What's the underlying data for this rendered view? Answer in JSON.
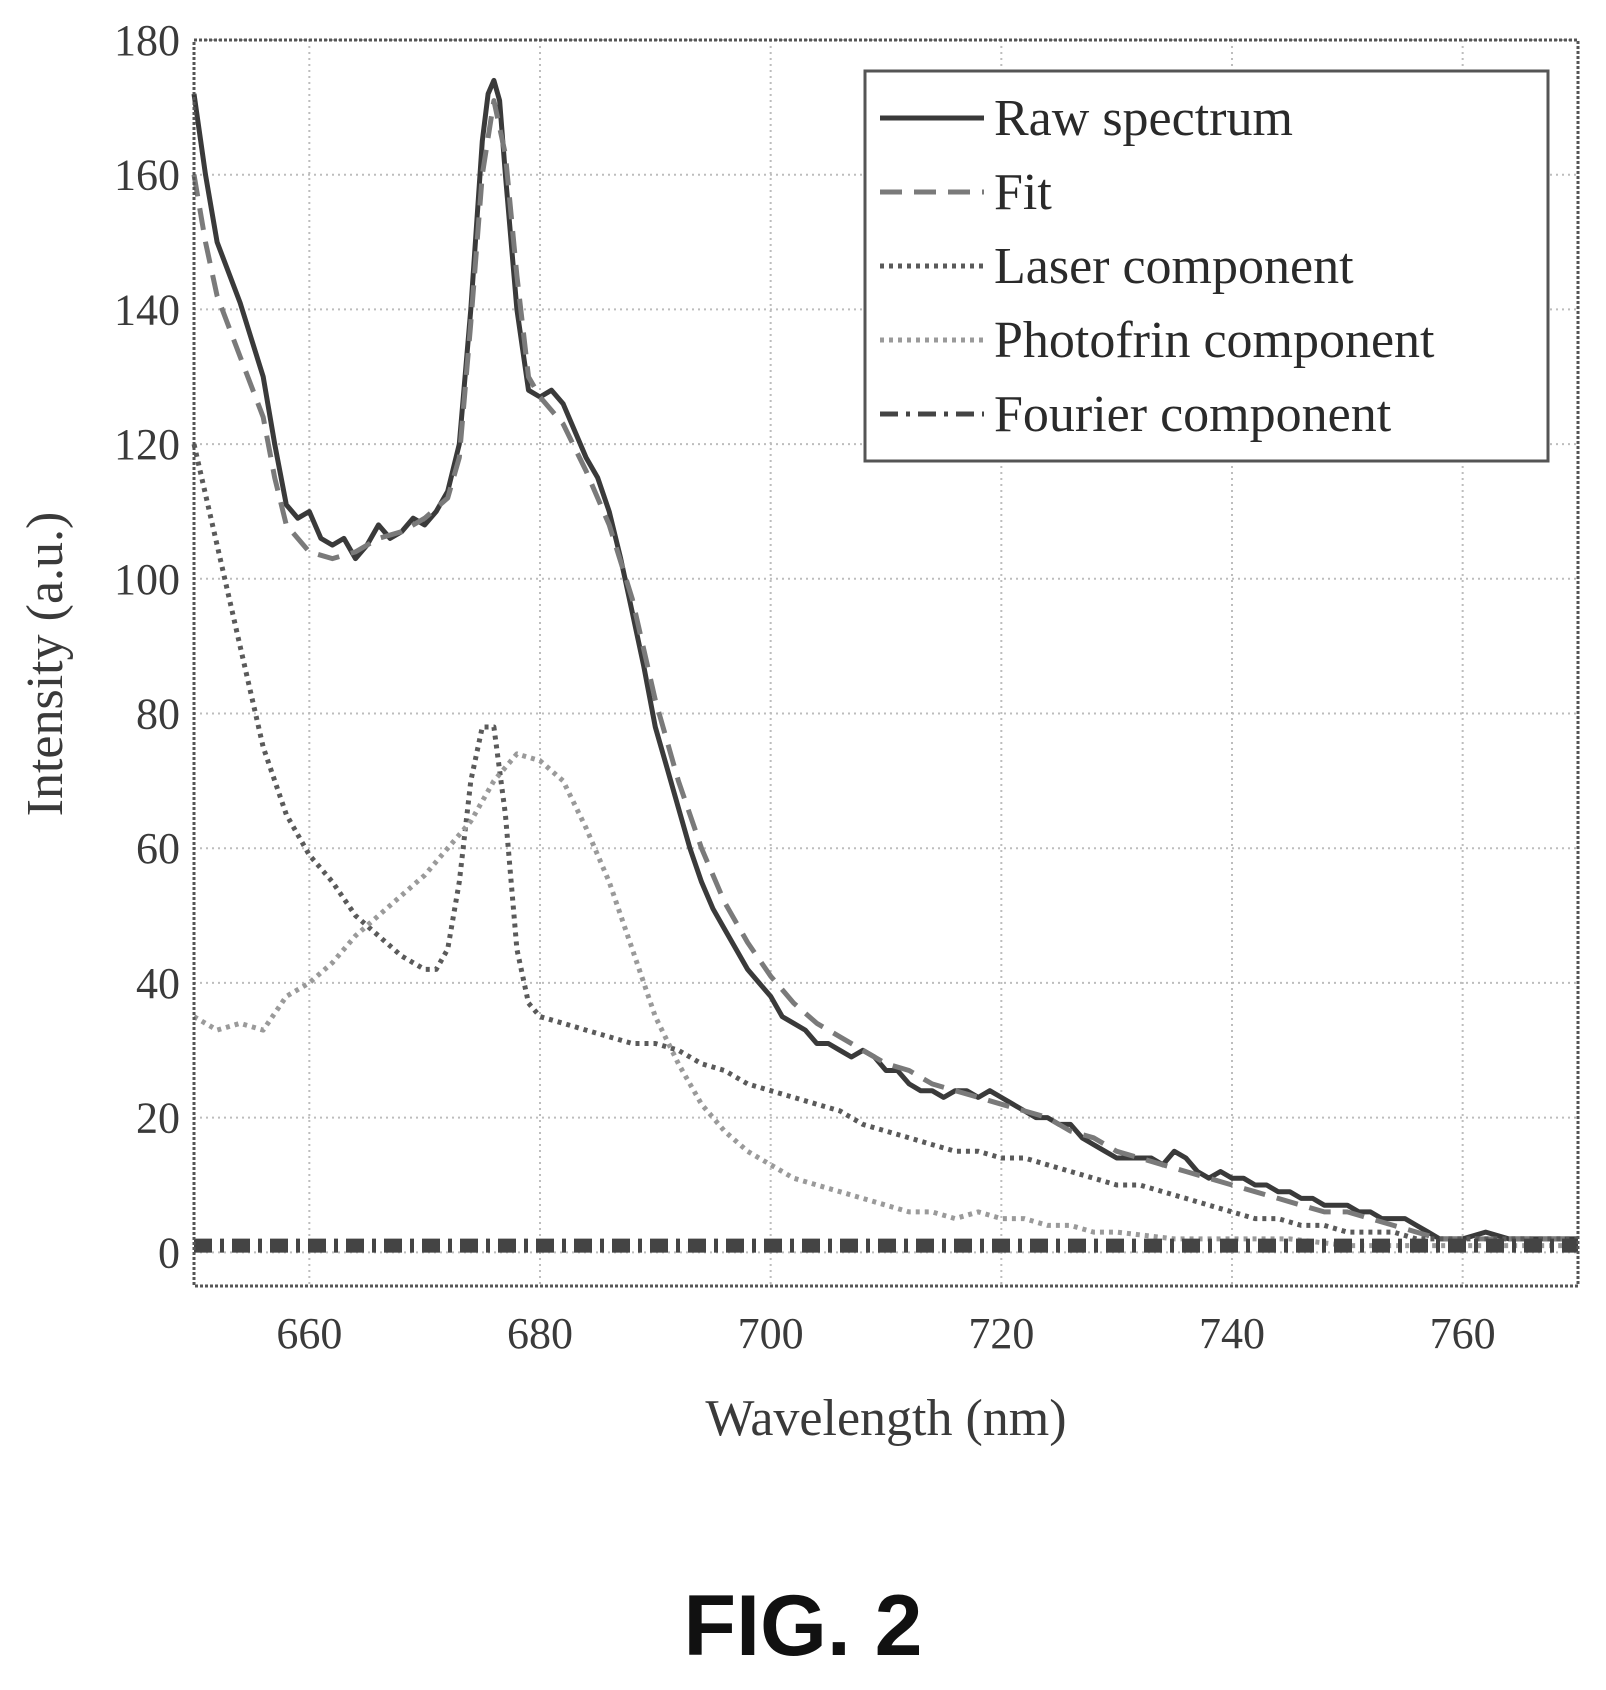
{
  "figure": {
    "caption": "FIG. 2"
  },
  "chart_data": {
    "type": "line",
    "xlabel": "Wavelength (nm)",
    "ylabel": "Intensity (a.u.)",
    "xlim": [
      650,
      770
    ],
    "ylim": [
      -5,
      180
    ],
    "xticks": [
      660,
      680,
      700,
      720,
      740,
      760
    ],
    "yticks": [
      0,
      20,
      40,
      60,
      80,
      100,
      120,
      140,
      160,
      180
    ],
    "grid": true,
    "legend_position": "top-right",
    "series": [
      {
        "name": "Raw spectrum",
        "color": "#3a3a3a",
        "dash": "solid",
        "x": [
          650,
          651,
          652,
          654,
          656,
          657,
          658,
          659,
          660,
          661,
          662,
          663,
          664,
          665,
          666,
          667,
          668,
          669,
          670,
          671,
          672,
          673,
          674,
          675,
          675.5,
          676,
          676.5,
          677,
          678,
          679,
          680,
          681,
          682,
          683,
          684,
          685,
          686,
          687,
          688,
          689,
          690,
          691,
          692,
          693,
          694,
          695,
          696,
          697,
          698,
          699,
          700,
          701,
          702,
          703,
          704,
          705,
          706,
          707,
          708,
          709,
          710,
          711,
          712,
          713,
          714,
          715,
          716,
          717,
          718,
          719,
          720,
          721,
          722,
          723,
          724,
          725,
          726,
          727,
          728,
          729,
          730,
          731,
          732,
          733,
          734,
          735,
          736,
          737,
          738,
          739,
          740,
          741,
          742,
          743,
          744,
          745,
          746,
          747,
          748,
          749,
          750,
          751,
          752,
          753,
          754,
          755,
          756,
          757,
          758,
          760,
          762,
          764,
          766,
          768,
          770
        ],
        "y": [
          172,
          160,
          150,
          141,
          130,
          120,
          111,
          109,
          110,
          106,
          105,
          106,
          103,
          105,
          108,
          106,
          107,
          109,
          108,
          110,
          113,
          120,
          140,
          165,
          172,
          174,
          171,
          160,
          140,
          128,
          127,
          128,
          126,
          122,
          118,
          115,
          110,
          103,
          95,
          87,
          78,
          72,
          66,
          60,
          55,
          51,
          48,
          45,
          42,
          40,
          38,
          35,
          34,
          33,
          31,
          31,
          30,
          29,
          30,
          29,
          27,
          27,
          25,
          24,
          24,
          23,
          24,
          24,
          23,
          24,
          23,
          22,
          21,
          20,
          20,
          19,
          19,
          17,
          16,
          15,
          14,
          14,
          14,
          14,
          13,
          15,
          14,
          12,
          11,
          12,
          11,
          11,
          10,
          10,
          9,
          9,
          8,
          8,
          7,
          7,
          7,
          6,
          6,
          5,
          5,
          5,
          4,
          3,
          2,
          2,
          3,
          2,
          2,
          2,
          2
        ]
      },
      {
        "name": "Fit",
        "color": "#7a7a7a",
        "dash": "dashed",
        "x": [
          650,
          651,
          652,
          654,
          656,
          657,
          658,
          660,
          662,
          664,
          666,
          668,
          670,
          672,
          673,
          674,
          675,
          676,
          677,
          678,
          679,
          680,
          682,
          684,
          686,
          688,
          690,
          692,
          694,
          696,
          698,
          700,
          702,
          704,
          706,
          708,
          710,
          712,
          714,
          716,
          718,
          720,
          722,
          724,
          726,
          728,
          730,
          732,
          734,
          736,
          738,
          740,
          742,
          744,
          746,
          748,
          750,
          752,
          754,
          756,
          758,
          760,
          762,
          764,
          766,
          768,
          770
        ],
        "y": [
          160,
          150,
          142,
          133,
          124,
          115,
          108,
          104,
          103,
          104,
          106,
          107,
          109,
          112,
          118,
          138,
          160,
          171,
          163,
          145,
          130,
          127,
          123,
          116,
          108,
          97,
          82,
          70,
          60,
          52,
          46,
          41,
          37,
          34,
          32,
          30,
          28,
          27,
          25,
          24,
          23,
          22,
          21,
          20,
          18,
          17,
          15,
          14,
          13,
          12,
          11,
          10,
          9,
          8,
          7,
          6,
          6,
          5,
          4,
          3,
          2,
          2,
          2,
          2,
          2,
          2,
          2
        ]
      },
      {
        "name": "Laser component",
        "color": "#5a5a5a",
        "dash": "dotted",
        "x": [
          650,
          652,
          654,
          656,
          658,
          660,
          662,
          664,
          666,
          668,
          670,
          671,
          672,
          673,
          674,
          675,
          676,
          677,
          678,
          679,
          680,
          682,
          684,
          686,
          688,
          690,
          692,
          694,
          696,
          698,
          700,
          702,
          704,
          706,
          708,
          710,
          712,
          714,
          716,
          718,
          720,
          722,
          724,
          726,
          728,
          730,
          732,
          734,
          736,
          738,
          740,
          742,
          744,
          746,
          748,
          750,
          752,
          754,
          756,
          758,
          760,
          762,
          764,
          766,
          768,
          770
        ],
        "y": [
          120,
          105,
          90,
          75,
          65,
          59,
          55,
          50,
          47,
          44,
          42,
          42,
          45,
          55,
          70,
          78,
          78,
          65,
          45,
          37,
          35,
          34,
          33,
          32,
          31,
          31,
          30,
          28,
          27,
          25,
          24,
          23,
          22,
          21,
          19,
          18,
          17,
          16,
          15,
          15,
          14,
          14,
          13,
          12,
          11,
          10,
          10,
          9,
          8,
          7,
          6,
          5,
          5,
          4,
          4,
          3,
          3,
          3,
          2,
          2,
          2,
          2,
          2,
          2,
          2,
          2
        ]
      },
      {
        "name": "Photofrin component",
        "color": "#9a9a9a",
        "dash": "dotted",
        "x": [
          650,
          652,
          654,
          656,
          658,
          660,
          662,
          664,
          666,
          668,
          670,
          672,
          674,
          676,
          678,
          680,
          682,
          684,
          686,
          688,
          690,
          692,
          694,
          696,
          698,
          700,
          702,
          704,
          706,
          708,
          710,
          712,
          714,
          716,
          718,
          720,
          722,
          724,
          726,
          728,
          730,
          735,
          740,
          745,
          750,
          755,
          760,
          765,
          770
        ],
        "y": [
          35,
          33,
          34,
          33,
          38,
          40,
          43,
          47,
          50,
          53,
          56,
          60,
          64,
          70,
          74,
          73,
          70,
          63,
          55,
          45,
          35,
          28,
          22,
          18,
          15,
          13,
          11,
          10,
          9,
          8,
          7,
          6,
          6,
          5,
          6,
          5,
          5,
          4,
          4,
          3,
          3,
          2,
          2,
          2,
          1,
          1,
          1,
          1,
          1
        ]
      },
      {
        "name": "Fourier component",
        "color": "#444444",
        "dash": "dashdot",
        "x": [
          650,
          660,
          670,
          680,
          690,
          700,
          710,
          720,
          730,
          740,
          750,
          760,
          770
        ],
        "y": [
          1,
          1,
          1,
          1,
          1,
          1,
          1,
          1,
          1,
          1,
          1,
          1,
          1
        ]
      }
    ]
  }
}
